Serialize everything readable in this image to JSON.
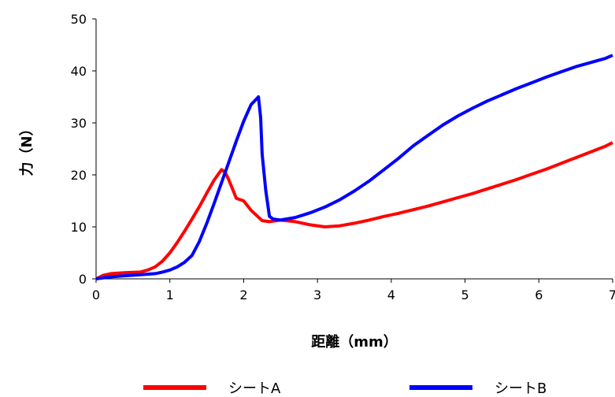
{
  "chart_data": {
    "type": "line",
    "xlabel": "距離（mm）",
    "ylabel": "力（N）",
    "xlim": [
      0,
      7
    ],
    "ylim": [
      0,
      50
    ],
    "xticks": [
      "0",
      "1",
      "2",
      "3",
      "4",
      "5",
      "6",
      "7"
    ],
    "yticks": [
      "0",
      "10",
      "20",
      "30",
      "40",
      "50"
    ],
    "grid": false,
    "legend": "bottom",
    "series": [
      {
        "name": "シートA",
        "color": "#ff0000",
        "x": [
          0,
          0.1,
          0.2,
          0.4,
          0.6,
          0.7,
          0.8,
          0.9,
          1.0,
          1.1,
          1.2,
          1.3,
          1.4,
          1.5,
          1.6,
          1.7,
          1.75,
          1.8,
          1.9,
          2.0,
          2.1,
          2.25,
          2.35,
          2.5,
          2.7,
          2.9,
          3.1,
          3.3,
          3.5,
          3.7,
          3.9,
          4.1,
          4.3,
          4.5,
          4.7,
          4.9,
          5.1,
          5.3,
          5.5,
          5.7,
          5.9,
          6.1,
          6.3,
          6.5,
          6.7,
          6.9,
          7.0
        ],
        "y": [
          0,
          0.7,
          1.0,
          1.2,
          1.3,
          1.7,
          2.3,
          3.4,
          5.0,
          7.0,
          9.2,
          11.5,
          13.9,
          16.5,
          19.0,
          21.0,
          20.5,
          19.0,
          15.5,
          15.0,
          13.2,
          11.2,
          11.0,
          11.3,
          11.0,
          10.4,
          10.0,
          10.2,
          10.7,
          11.3,
          12.0,
          12.6,
          13.3,
          14.0,
          14.8,
          15.6,
          16.4,
          17.3,
          18.2,
          19.1,
          20.1,
          21.1,
          22.2,
          23.3,
          24.4,
          25.5,
          26.2
        ]
      },
      {
        "name": "シートB",
        "color": "#0000ff",
        "x": [
          0,
          0.2,
          0.4,
          0.6,
          0.8,
          0.9,
          1.0,
          1.1,
          1.2,
          1.3,
          1.4,
          1.5,
          1.6,
          1.7,
          1.8,
          1.9,
          2.0,
          2.1,
          2.2,
          2.23,
          2.25,
          2.3,
          2.35,
          2.4,
          2.5,
          2.7,
          2.9,
          3.1,
          3.3,
          3.5,
          3.7,
          3.9,
          4.1,
          4.3,
          4.5,
          4.7,
          4.9,
          5.1,
          5.3,
          5.5,
          5.7,
          5.9,
          6.1,
          6.3,
          6.5,
          6.7,
          6.9,
          7.0
        ],
        "y": [
          0,
          0.4,
          0.6,
          0.8,
          1.0,
          1.3,
          1.7,
          2.3,
          3.2,
          4.5,
          7.2,
          10.7,
          14.5,
          18.5,
          22.5,
          26.5,
          30.3,
          33.5,
          35.0,
          31.0,
          24.0,
          17.0,
          12.0,
          11.5,
          11.3,
          11.8,
          12.7,
          13.8,
          15.2,
          16.9,
          18.8,
          21.0,
          23.2,
          25.6,
          27.6,
          29.6,
          31.3,
          32.8,
          34.2,
          35.4,
          36.6,
          37.7,
          38.8,
          39.8,
          40.8,
          41.6,
          42.4,
          43.0
        ]
      }
    ]
  }
}
